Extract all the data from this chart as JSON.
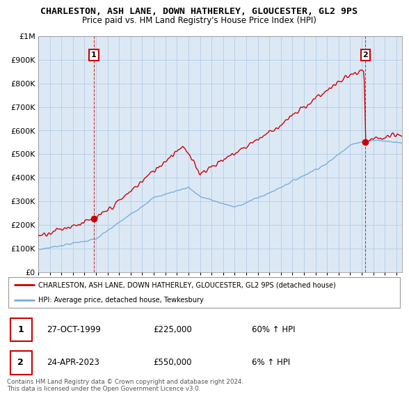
{
  "title": "CHARLESTON, ASH LANE, DOWN HATHERLEY, GLOUCESTER, GL2 9PS",
  "subtitle": "Price paid vs. HM Land Registry's House Price Index (HPI)",
  "hpi_label": "HPI: Average price, detached house, Tewkesbury",
  "price_label": "CHARLESTON, ASH LANE, DOWN HATHERLEY, GLOUCESTER, GL2 9PS (detached house)",
  "annotation1": {
    "num": "1",
    "date": "27-OCT-1999",
    "price": "£225,000",
    "pct": "60% ↑ HPI"
  },
  "annotation2": {
    "num": "2",
    "date": "24-APR-2023",
    "price": "£550,000",
    "pct": "6% ↑ HPI"
  },
  "footer": "Contains HM Land Registry data © Crown copyright and database right 2024.\nThis data is licensed under the Open Government Licence v3.0.",
  "price_color": "#cc0000",
  "hpi_color": "#7aaddb",
  "bg_color": "#ffffff",
  "chart_bg": "#dce9f5",
  "grid_color": "#b8cfe8",
  "ylim": [
    0,
    1000000
  ],
  "yticks": [
    0,
    100000,
    200000,
    300000,
    400000,
    500000,
    600000,
    700000,
    800000,
    900000,
    1000000
  ],
  "xlim_start": 1995.0,
  "xlim_end": 2026.5,
  "sale1_x": 1999.82,
  "sale1_y": 225000,
  "sale2_x": 2023.31,
  "sale2_y": 550000
}
